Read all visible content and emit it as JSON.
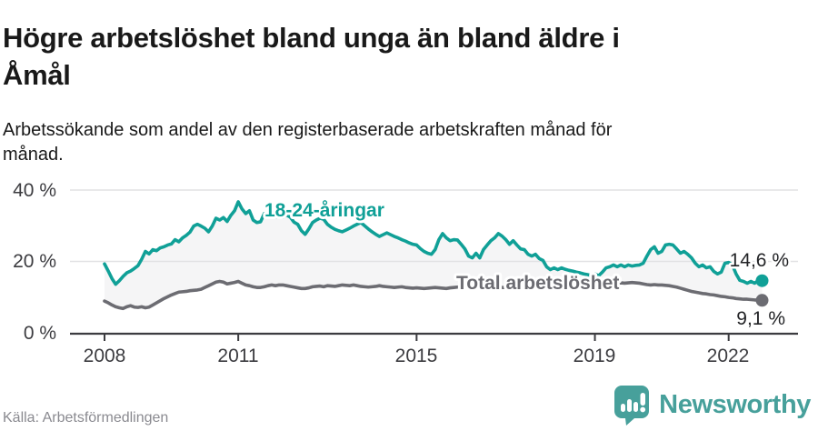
{
  "header": {
    "title_lines": [
      "Högre arbetslöshet bland unga än bland äldre i",
      "Åmål"
    ],
    "subtitle_lines": [
      "Arbetssökande som andel av den registerbaserade arbetskraften månad för",
      "månad."
    ]
  },
  "footer": {
    "source": "Källa: Arbetsförmedlingen",
    "brand": "Newsworthy",
    "brand_color": "#47a09b"
  },
  "chart_data": {
    "type": "line",
    "unit": "%",
    "x_start": "2008-01",
    "x_end": "2022-10",
    "x_ticks": [
      2008,
      2011,
      2015,
      2019,
      2022
    ],
    "x_tick_labels": [
      "2008",
      "2011",
      "2015",
      "2019",
      "2022"
    ],
    "y_ticks": [
      0,
      20,
      40
    ],
    "y_tick_labels": [
      "0 %",
      "20 %",
      "40 %"
    ],
    "ylim": [
      0,
      40
    ],
    "grid": "horizontal",
    "legend": "inline-labels",
    "area_fill": "#f5f5f6",
    "series": [
      {
        "id": "youth",
        "name": "18-24-åringar",
        "color": "#10a097",
        "end_label": "14,6 %",
        "end_value": 14.6,
        "values": [
          19.3,
          17.3,
          15.2,
          13.6,
          14.6,
          15.8,
          16.8,
          17.3,
          18.0,
          18.8,
          20.6,
          22.8,
          22.1,
          23.3,
          23.0,
          23.8,
          24.1,
          24.6,
          24.9,
          26.1,
          25.5,
          26.6,
          27.3,
          28.2,
          29.9,
          30.4,
          29.9,
          29.3,
          28.3,
          29.9,
          32.1,
          31.6,
          32.3,
          31.2,
          32.9,
          34.2,
          36.7,
          34.7,
          33.4,
          34.2,
          31.6,
          30.9,
          31.1,
          33.4,
          32.4,
          32.9,
          32.4,
          32.9,
          32.4,
          33.0,
          32.4,
          31.0,
          30.4,
          28.6,
          27.6,
          29.1,
          30.9,
          31.6,
          32.1,
          31.8,
          30.4,
          29.6,
          29.0,
          28.6,
          28.3,
          28.8,
          29.3,
          29.9,
          30.4,
          30.9,
          30.0,
          29.1,
          28.3,
          27.6,
          27.0,
          27.5,
          28.0,
          27.5,
          27.0,
          26.6,
          26.1,
          25.7,
          25.2,
          24.8,
          24.6,
          23.6,
          22.8,
          22.3,
          22.0,
          23.3,
          26.1,
          27.8,
          26.6,
          25.8,
          26.1,
          26.0,
          24.8,
          23.5,
          21.5,
          21.0,
          22.3,
          21.0,
          23.3,
          24.6,
          25.8,
          26.6,
          27.8,
          27.1,
          26.1,
          24.8,
          25.8,
          24.6,
          23.5,
          23.3,
          22.0,
          21.5,
          22.0,
          20.8,
          20.3,
          18.5,
          17.7,
          18.2,
          17.7,
          18.2,
          17.8,
          17.5,
          17.3,
          17.0,
          16.8,
          16.5,
          16.3,
          16.0,
          16.5,
          16.0,
          17.0,
          18.2,
          18.5,
          19.0,
          18.5,
          19.0,
          18.5,
          19.0,
          18.7,
          18.9,
          19.0,
          19.5,
          21.5,
          23.3,
          24.1,
          22.3,
          22.8,
          24.6,
          24.8,
          24.6,
          23.5,
          22.3,
          22.8,
          22.0,
          21.0,
          19.5,
          18.5,
          19.0,
          18.2,
          18.5,
          17.2,
          16.5,
          17.0,
          19.5,
          19.7,
          19.0,
          16.5,
          14.7,
          14.4,
          13.9,
          14.4,
          13.9,
          14.7,
          14.6
        ]
      },
      {
        "id": "total",
        "name": "Total arbetslöshet",
        "color": "#6c6c72",
        "end_label": "9,1 %",
        "end_value": 9.1,
        "values": [
          8.9,
          8.4,
          7.8,
          7.3,
          7.0,
          6.8,
          7.3,
          7.6,
          7.2,
          7.1,
          7.3,
          7.0,
          7.2,
          7.8,
          8.4,
          9.0,
          9.6,
          10.1,
          10.6,
          11.0,
          11.4,
          11.5,
          11.6,
          11.8,
          11.9,
          12.0,
          12.2,
          12.7,
          13.2,
          13.7,
          14.2,
          14.4,
          14.2,
          13.7,
          13.9,
          14.1,
          14.4,
          13.9,
          13.4,
          13.2,
          12.9,
          12.7,
          12.7,
          12.9,
          13.2,
          13.4,
          13.2,
          13.4,
          13.4,
          13.2,
          13.0,
          12.8,
          12.6,
          12.4,
          12.4,
          12.6,
          12.9,
          13.0,
          13.1,
          12.9,
          13.2,
          13.1,
          13.0,
          13.2,
          13.4,
          13.3,
          13.2,
          13.4,
          13.2,
          13.0,
          12.9,
          12.8,
          12.9,
          13.0,
          13.2,
          13.0,
          12.9,
          12.8,
          12.7,
          12.8,
          12.9,
          12.7,
          12.6,
          12.5,
          12.6,
          12.5,
          12.4,
          12.5,
          12.6,
          12.7,
          12.6,
          12.5,
          12.4,
          12.6,
          12.7,
          12.8,
          12.9,
          13.0,
          13.1,
          13.0,
          12.9,
          12.8,
          12.7,
          12.8,
          12.7,
          12.6,
          12.6,
          12.7,
          12.7,
          12.6,
          12.5,
          12.6,
          12.7,
          12.8,
          12.7,
          12.8,
          12.9,
          13.0,
          13.1,
          13.2,
          13.2,
          13.3,
          13.4,
          13.4,
          13.5,
          13.6,
          13.6,
          13.7,
          13.8,
          13.8,
          13.9,
          13.9,
          13.6,
          13.8,
          13.9,
          14.0,
          14.2,
          14.0,
          13.9,
          14.0,
          13.9,
          14.0,
          14.1,
          14.0,
          13.9,
          13.7,
          13.5,
          13.4,
          13.5,
          13.4,
          13.4,
          13.3,
          13.2,
          13.0,
          12.8,
          12.5,
          12.2,
          11.9,
          11.6,
          11.4,
          11.2,
          11.0,
          10.9,
          10.7,
          10.6,
          10.4,
          10.2,
          10.1,
          9.9,
          9.8,
          9.6,
          9.5,
          9.4,
          9.4,
          9.3,
          9.2,
          9.2,
          9.1
        ]
      }
    ]
  }
}
